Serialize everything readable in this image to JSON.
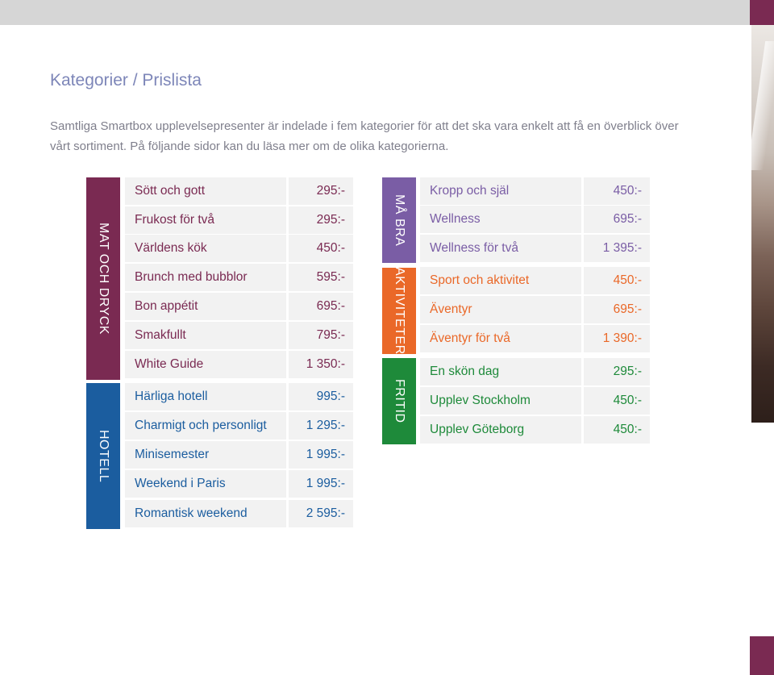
{
  "title": "Kategorier / Prislista",
  "intro": "Samtliga Smartbox upplevelsepresenter är indelade i fem kategorier för att det ska vara enkelt att få en överblick över vårt sortiment. På följande sidor kan du läsa mer om de olika kategorierna.",
  "colors": {
    "mat_och_dryck": "#7a2a52",
    "hotell": "#1b5d9f",
    "ma_bra": "#7a5da5",
    "aktiviteter": "#ea6828",
    "fritid": "#1e8a3a",
    "cell_background": "#f2f2f2"
  },
  "categories": {
    "mat_och_dryck": {
      "label": "MAT OCH DRYCK",
      "items": [
        {
          "name": "Sött och gott",
          "price": "295:-"
        },
        {
          "name": "Frukost för två",
          "price": "295:-"
        },
        {
          "name": "Världens kök",
          "price": "450:-"
        },
        {
          "name": "Brunch med bubblor",
          "price": "595:-"
        },
        {
          "name": "Bon appétit",
          "price": "695:-"
        },
        {
          "name": "Smakfullt",
          "price": "795:-"
        },
        {
          "name": "White Guide",
          "price": "1 350:-"
        }
      ]
    },
    "hotell": {
      "label": "HOTELL",
      "items": [
        {
          "name": "Härliga hotell",
          "price": "995:-"
        },
        {
          "name": "Charmigt och personligt",
          "price": "1 295:-"
        },
        {
          "name": "Minisemester",
          "price": "1 995:-"
        },
        {
          "name": "Weekend i Paris",
          "price": "1 995:-"
        },
        {
          "name": "Romantisk weekend",
          "price": "2 595:-"
        }
      ]
    },
    "ma_bra": {
      "label": "MÅ BRA",
      "items": [
        {
          "name": "Kropp och själ",
          "price": "450:-"
        },
        {
          "name": "Wellness",
          "price": "695:-"
        },
        {
          "name": "Wellness för två",
          "price": "1 395:-"
        }
      ]
    },
    "aktiviteter": {
      "label": "AKTIVITETER",
      "items": [
        {
          "name": "Sport och aktivitet",
          "price": "450:-"
        },
        {
          "name": "Äventyr",
          "price": "695:-"
        },
        {
          "name": "Äventyr för två",
          "price": "1 390:-"
        }
      ]
    },
    "fritid": {
      "label": "FRITID",
      "items": [
        {
          "name": "En skön dag",
          "price": "295:-"
        },
        {
          "name": "Upplev Stockholm",
          "price": "450:-"
        },
        {
          "name": "Upplev Göteborg",
          "price": "450:-"
        }
      ]
    }
  }
}
